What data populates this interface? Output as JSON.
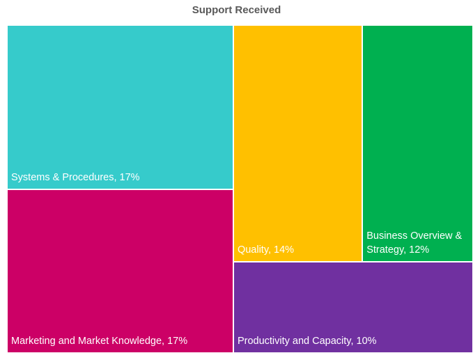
{
  "chart_data": {
    "type": "treemap",
    "title": "Support Received",
    "values": [
      17,
      17,
      14,
      12,
      10
    ],
    "value_labels": [
      "Systems & Procedures, 17%",
      "Marketing and Market Knowledge, 17%",
      "Quality, 14%",
      "Business Overview & Strategy, 12%",
      "Productivity and Capacity, 10%"
    ],
    "colors": [
      "#36cbcb",
      "#cc0066",
      "#ffc000",
      "#00b050",
      "#7030a0"
    ]
  }
}
